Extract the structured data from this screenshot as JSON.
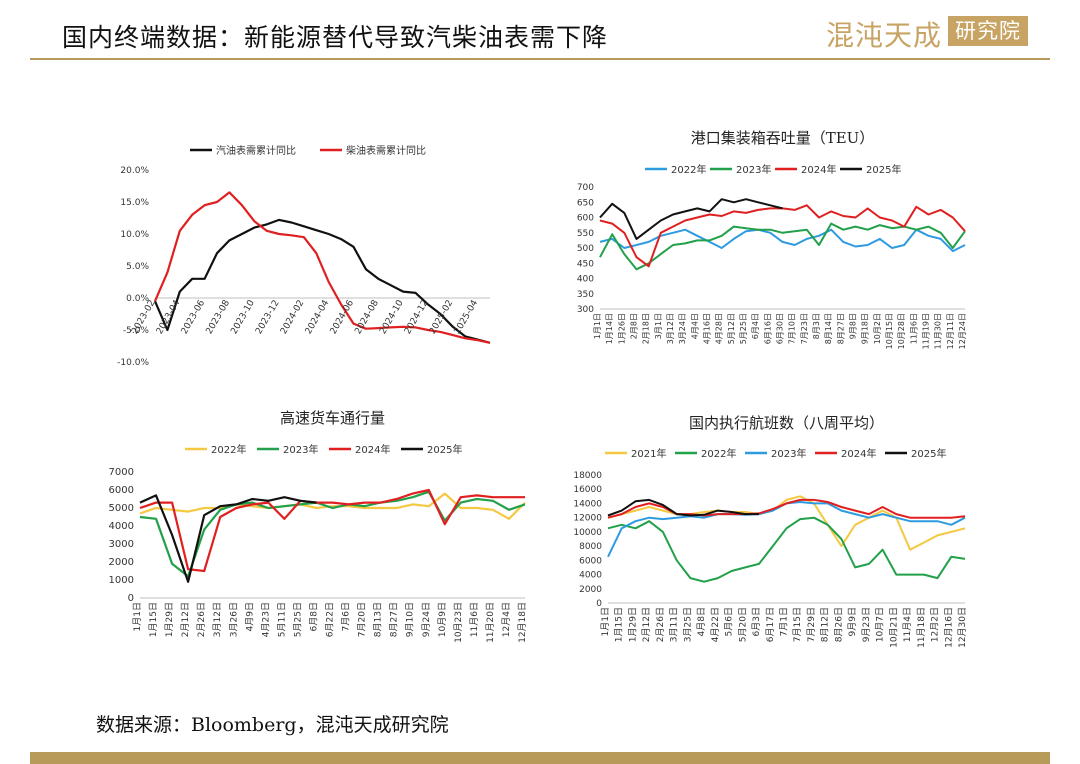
{
  "header": {
    "title": "国内终端数据：新能源替代导致汽柴油表需下降",
    "logo_left": "混沌天成",
    "logo_right": "研究院"
  },
  "footer": {
    "source": "数据来源：Bloomberg，混沌天成研究院"
  },
  "colors": {
    "black": "#111111",
    "red": "#e02020",
    "blue": "#2e9be0",
    "green": "#22a04a",
    "yellow": "#f5c842",
    "gold": "#b89a5a"
  },
  "chart_data": [
    {
      "type": "line",
      "title": "",
      "x": [
        "2023-02",
        "2023-03",
        "2023-04",
        "2023-05",
        "2023-06",
        "2023-07",
        "2023-08",
        "2023-09",
        "2023-10",
        "2023-11",
        "2023-12",
        "2024-01",
        "2024-02",
        "2024-03",
        "2024-04",
        "2024-05",
        "2024-06",
        "2024-07",
        "2024-08",
        "2024-09",
        "2024-10",
        "2024-11",
        "2024-12",
        "2025-01",
        "2025-02",
        "2025-03",
        "2025-04",
        "2025-05"
      ],
      "xticks": [
        "2023-02",
        "2023-04",
        "2023-06",
        "2023-08",
        "2023-10",
        "2023-12",
        "2024-02",
        "2024-04",
        "2024-06",
        "2024-08",
        "2024-10",
        "2024-12",
        "2025-02",
        "2025-04"
      ],
      "ylim": [
        -10,
        20
      ],
      "yticks": [
        "-10.0%",
        "-5.0%",
        "0.0%",
        "5.0%",
        "10.0%",
        "15.0%",
        "20.0%"
      ],
      "legend_position": "top",
      "series": [
        {
          "name": "汽油表需累计同比",
          "color": "#111111",
          "values": [
            -0.5,
            -5.0,
            1.0,
            3.0,
            3.0,
            7.0,
            9.0,
            10.0,
            11.0,
            11.5,
            12.2,
            11.8,
            11.2,
            10.6,
            10.0,
            9.2,
            8.0,
            4.5,
            3.0,
            2.0,
            1.0,
            0.8,
            -1.0,
            -2.5,
            -4.5,
            -6.0,
            -6.5,
            -7.0
          ]
        },
        {
          "name": "柴油表需累计同比",
          "color": "#e02020",
          "values": [
            -0.5,
            4.0,
            10.5,
            13.0,
            14.5,
            15.0,
            16.5,
            14.5,
            12.0,
            10.5,
            10.0,
            9.8,
            9.5,
            7.0,
            2.5,
            -1.0,
            -4.0,
            -4.8,
            -4.7,
            -4.6,
            -4.5,
            -4.6,
            -5.0,
            -5.3,
            -5.8,
            -6.3,
            -6.6,
            -7.0
          ]
        }
      ]
    },
    {
      "type": "line",
      "title": "港口集装箱吞吐量（TEU）",
      "xticks": [
        "1月1日",
        "1月14日",
        "1月26日",
        "2月8日",
        "2月18日",
        "3月1日",
        "3月12日",
        "3月24日",
        "4月4日",
        "4月16日",
        "4月28日",
        "5月12日",
        "5月25日",
        "6月4日",
        "6月16日",
        "6月30日",
        "7月10日",
        "7月23日",
        "8月3日",
        "8月14日",
        "8月27日",
        "9月8日",
        "9月18日",
        "10月2日",
        "10月15日",
        "10月28日",
        "11月6日",
        "11月19日",
        "11月30日",
        "12月11日",
        "12月24日"
      ],
      "ylim": [
        300,
        700
      ],
      "yticks": [
        "300",
        "350",
        "400",
        "450",
        "500",
        "550",
        "600",
        "650",
        "700"
      ],
      "legend_position": "top",
      "series": [
        {
          "name": "2022年",
          "color": "#2e9be0",
          "values": [
            520,
            530,
            500,
            510,
            520,
            540,
            550,
            560,
            540,
            520,
            500,
            530,
            555,
            560,
            550,
            520,
            510,
            530,
            540,
            560,
            520,
            505,
            510,
            530,
            500,
            510,
            560,
            540,
            530,
            490,
            510
          ]
        },
        {
          "name": "2023年",
          "color": "#22a04a",
          "values": [
            470,
            545,
            480,
            430,
            450,
            480,
            510,
            515,
            525,
            525,
            540,
            570,
            565,
            560,
            560,
            550,
            555,
            560,
            510,
            580,
            560,
            570,
            560,
            575,
            565,
            570,
            560,
            570,
            550,
            500,
            555
          ]
        },
        {
          "name": "2024年",
          "color": "#e02020",
          "values": [
            590,
            580,
            550,
            470,
            440,
            550,
            570,
            590,
            600,
            610,
            605,
            620,
            615,
            625,
            630,
            630,
            625,
            640,
            600,
            620,
            605,
            600,
            630,
            600,
            590,
            570,
            635,
            610,
            625,
            600,
            555
          ]
        },
        {
          "name": "2025年",
          "color": "#111111",
          "values": [
            600,
            645,
            615,
            530,
            560,
            590,
            610,
            620,
            630,
            620,
            660,
            650,
            660,
            650,
            640,
            630
          ]
        }
      ]
    },
    {
      "type": "line",
      "title": "高速货车通行量",
      "xticks": [
        "1月1日",
        "1月15日",
        "1月29日",
        "2月12日",
        "2月26日",
        "3月12日",
        "3月26日",
        "4月9日",
        "4月23日",
        "5月11日",
        "5月25日",
        "6月8日",
        "6月22日",
        "7月6日",
        "7月20日",
        "8月13日",
        "8月27日",
        "9月10日",
        "9月24日",
        "10月9日",
        "10月23日",
        "11月6日",
        "11月20日",
        "12月4日",
        "12月18日"
      ],
      "ylim": [
        0,
        7000
      ],
      "yticks": [
        "0",
        "1000",
        "2000",
        "3000",
        "4000",
        "5000",
        "6000",
        "7000"
      ],
      "legend_position": "top",
      "series": [
        {
          "name": "2022年",
          "color": "#f5c842",
          "values": [
            4700,
            5000,
            4900,
            4800,
            5000,
            5000,
            5200,
            5100,
            5000,
            5100,
            5200,
            5000,
            5100,
            5100,
            5000,
            5000,
            5000,
            5200,
            5100,
            5800,
            5000,
            5000,
            4900,
            4400,
            5300
          ]
        },
        {
          "name": "2023年",
          "color": "#22a04a",
          "values": [
            4500,
            4400,
            1900,
            1200,
            3800,
            4900,
            5200,
            5300,
            5000,
            5100,
            5200,
            5300,
            5000,
            5200,
            5100,
            5300,
            5400,
            5600,
            5900,
            4300,
            5300,
            5500,
            5400,
            4900,
            5200
          ]
        },
        {
          "name": "2024年",
          "color": "#e02020",
          "values": [
            5000,
            5300,
            5300,
            1600,
            1500,
            4500,
            5000,
            5200,
            5300,
            4400,
            5400,
            5300,
            5300,
            5200,
            5300,
            5300,
            5500,
            5800,
            6000,
            4100,
            5600,
            5700,
            5600,
            5600,
            5600
          ]
        },
        {
          "name": "2025年",
          "color": "#111111",
          "values": [
            5300,
            5700,
            3500,
            900,
            4600,
            5100,
            5200,
            5500,
            5400,
            5600,
            5400,
            5300
          ]
        }
      ]
    },
    {
      "type": "line",
      "title": "国内执行航班数（八周平均）",
      "xticks": [
        "1月1日",
        "1月15日",
        "1月29日",
        "2月12日",
        "2月26日",
        "3月11日",
        "3月25日",
        "4月8日",
        "4月22日",
        "5月6日",
        "5月20日",
        "6月3日",
        "6月17日",
        "7月1日",
        "7月15日",
        "7月29日",
        "8月12日",
        "8月26日",
        "9月9日",
        "9月23日",
        "10月7日",
        "10月21日",
        "11月4日",
        "11月18日",
        "12月2日",
        "12月16日",
        "12月30日"
      ],
      "ylim": [
        0,
        18000
      ],
      "yticks": [
        "0",
        "2000",
        "4000",
        "6000",
        "8000",
        "10000",
        "12000",
        "14000",
        "16000",
        "18000"
      ],
      "legend_position": "top",
      "series": [
        {
          "name": "2021年",
          "color": "#f5c842",
          "values": [
            12000,
            12500,
            13000,
            13500,
            13000,
            12500,
            12500,
            12800,
            13000,
            12800,
            12800,
            12500,
            13000,
            14500,
            15000,
            14000,
            11000,
            8000,
            11000,
            12000,
            13000,
            12000,
            7500,
            8500,
            9500,
            10000,
            10500
          ]
        },
        {
          "name": "2022年",
          "color": "#22a04a",
          "values": [
            10500,
            11000,
            10500,
            11500,
            10000,
            6000,
            3500,
            3000,
            3500,
            4500,
            5000,
            5500,
            8000,
            10500,
            11800,
            12000,
            11000,
            9000,
            5000,
            5500,
            7500,
            4000,
            4000,
            4000,
            3500,
            6500,
            6200
          ]
        },
        {
          "name": "2023年",
          "color": "#2e9be0",
          "values": [
            6500,
            10500,
            11500,
            12000,
            11800,
            12000,
            12200,
            12000,
            12500,
            12500,
            12400,
            12500,
            13000,
            14000,
            14200,
            14000,
            14000,
            13000,
            12500,
            12000,
            12500,
            12000,
            11500,
            11500,
            11500,
            11000,
            12000
          ]
        },
        {
          "name": "2024年",
          "color": "#e02020",
          "values": [
            12000,
            12500,
            13500,
            14000,
            13500,
            12500,
            12500,
            12300,
            12500,
            12500,
            12500,
            12600,
            13200,
            14000,
            14500,
            14500,
            14200,
            13500,
            13000,
            12500,
            13500,
            12500,
            12000,
            12000,
            12000,
            12000,
            12200
          ]
        },
        {
          "name": "2025年",
          "color": "#111111",
          "values": [
            12300,
            13000,
            14300,
            14500,
            13800,
            12500,
            12300,
            12400,
            13000,
            12800,
            12500,
            12500
          ]
        }
      ]
    }
  ]
}
